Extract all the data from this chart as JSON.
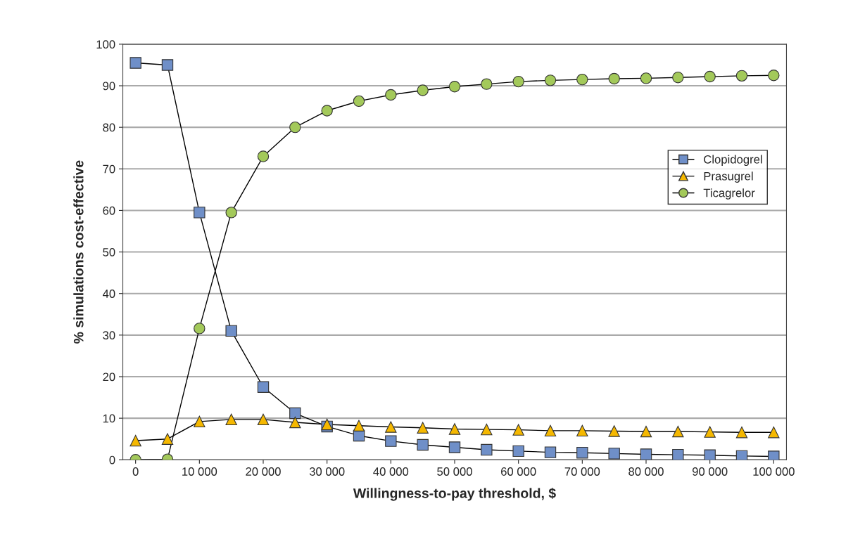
{
  "chart_data": {
    "type": "line",
    "xlabel": "Willingness-to-pay threshold, $",
    "ylabel": "% simulations cost-effective",
    "x": [
      0,
      5000,
      10000,
      15000,
      20000,
      25000,
      30000,
      35000,
      40000,
      45000,
      50000,
      55000,
      60000,
      65000,
      70000,
      75000,
      80000,
      85000,
      90000,
      95000,
      100000
    ],
    "series": [
      {
        "name": "Clopidogrel",
        "color": "#6f8fc8",
        "marker": "square",
        "values": [
          95.5,
          95,
          59.5,
          31,
          17.5,
          11.2,
          8,
          5.8,
          4.5,
          3.6,
          3,
          2.4,
          2.1,
          1.8,
          1.7,
          1.5,
          1.3,
          1.2,
          1.1,
          0.9,
          0.8
        ]
      },
      {
        "name": "Prasugrel",
        "color": "#f5b800",
        "marker": "triangle",
        "values": [
          4.6,
          5,
          9.2,
          9.7,
          9.7,
          9,
          8.5,
          8.2,
          7.9,
          7.7,
          7.4,
          7.3,
          7.2,
          7.0,
          7.0,
          6.9,
          6.8,
          6.8,
          6.7,
          6.6,
          6.6
        ]
      },
      {
        "name": "Ticagrelor",
        "color": "#a3c95a",
        "marker": "circle",
        "values": [
          0,
          0.1,
          31.6,
          59.5,
          73,
          80,
          84,
          86.3,
          87.8,
          88.9,
          89.8,
          90.4,
          91,
          91.3,
          91.5,
          91.7,
          91.8,
          92,
          92.2,
          92.4,
          92.5
        ]
      }
    ],
    "xlim": [
      -2000,
      102000
    ],
    "xticks": [
      0,
      {
        "value": 10000,
        "label": "10 000"
      },
      {
        "value": 20000,
        "label": "20 000"
      },
      {
        "value": 30000,
        "label": "30 000"
      },
      {
        "value": 40000,
        "label": "40 000"
      },
      {
        "value": 50000,
        "label": "50 000"
      },
      {
        "value": 60000,
        "label": "60 000"
      },
      {
        "value": 70000,
        "label": "70 000"
      },
      {
        "value": 80000,
        "label": "80 000"
      },
      {
        "value": 90000,
        "label": "90 000"
      },
      {
        "value": 100000,
        "label": "100 000"
      }
    ],
    "ylim": [
      0,
      100
    ],
    "yticks": [
      0,
      10,
      20,
      30,
      40,
      50,
      60,
      70,
      80,
      90,
      100
    ],
    "grid": "y",
    "legend": "right",
    "line_style": "solid"
  }
}
